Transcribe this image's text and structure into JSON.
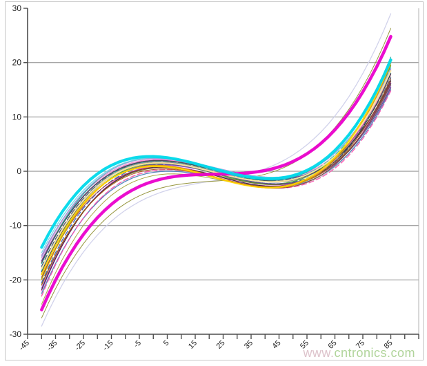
{
  "watermark": {
    "www_part": "www.",
    "site_part": "cntronics.com"
  },
  "colors": {
    "background": "#ffffff",
    "frame_border": "#c6c6c6",
    "gridline": "#9a9a9a",
    "axis": "#4d4d4d",
    "tick_label": "#1f1f1f",
    "plot_right_border": "#b0b0b0",
    "watermark_green": "#a3cd89",
    "watermark_pink": "#d8b9c3",
    "thick_cyan": "#00d9ea",
    "thick_magenta": "#ea00cc"
  },
  "chart_data": {
    "type": "line",
    "title": "",
    "xlabel": "",
    "ylabel": "",
    "grid": "horizontal-only",
    "legend": "none",
    "x_axis": {
      "min": -45,
      "max": 95,
      "tick_step": 5,
      "label_step": 10,
      "tick_labels": [
        "-45",
        "-35",
        "-25",
        "-15",
        "-5",
        "5",
        "15",
        "25",
        "35",
        "45",
        "55",
        "65",
        "75",
        "85"
      ],
      "label_rotation_deg": -45
    },
    "y_axis": {
      "min": -30,
      "max": 30,
      "tick_step": 10,
      "tick_labels": [
        "30",
        "20",
        "10",
        "0",
        "-10",
        "-20",
        "-30"
      ],
      "gridline_values": [
        20,
        10,
        0,
        -10,
        -20
      ]
    },
    "curve_temp_range": [
      -40,
      85
    ],
    "anchor_temps": [
      -40,
      5,
      50,
      85
    ],
    "series_note": "Family of cubic frequency-deviation vs temperature curves; each series gives values (ppm) at anchor temps -40, 5, 50, 85 degC; the unique cubic through those points reproduces the drawn curve.",
    "series": [
      {
        "name": "pale-lavender",
        "color": "#cfd0ea",
        "width": 1.3,
        "dash": false,
        "values": [
          -28.5,
          -3.5,
          3.0,
          29.0
        ]
      },
      {
        "name": "olive-low",
        "color": "#8f8f33",
        "width": 1.0,
        "dash": false,
        "values": [
          -27.0,
          -2.8,
          1.5,
          26.3
        ]
      },
      {
        "name": "light-gray",
        "color": "#c4c4c4",
        "width": 1.0,
        "dash": false,
        "values": [
          -22.8,
          0.2,
          -2.8,
          15.2
        ]
      },
      {
        "name": "steel-blue-low",
        "color": "#4f81bd",
        "width": 1.3,
        "dash": false,
        "values": [
          -22.5,
          0.0,
          -2.6,
          15.0
        ]
      },
      {
        "name": "olive-mid",
        "color": "#a3a33c",
        "width": 1.0,
        "dash": false,
        "values": [
          -24.5,
          -0.5,
          -2.5,
          16.0
        ]
      },
      {
        "name": "navy",
        "color": "#1f3864",
        "width": 1.3,
        "dash": false,
        "values": [
          -18.5,
          1.6,
          -1.6,
          18.0
        ]
      },
      {
        "name": "navy-dashed",
        "color": "#2a4a80",
        "width": 1.3,
        "dash": true,
        "values": [
          -17.5,
          1.9,
          -1.3,
          17.2
        ]
      },
      {
        "name": "blue-dashed",
        "color": "#3a5fc0",
        "width": 1.3,
        "dash": true,
        "values": [
          -20.5,
          1.2,
          -2.0,
          16.8
        ]
      },
      {
        "name": "purple",
        "color": "#7030a0",
        "width": 1.5,
        "dash": false,
        "values": [
          -16.5,
          2.0,
          -1.2,
          16.2
        ]
      },
      {
        "name": "violet",
        "color": "#9b59d0",
        "width": 1.3,
        "dash": false,
        "values": [
          -21.5,
          1.1,
          -2.2,
          15.8
        ]
      },
      {
        "name": "plum",
        "color": "#b070d0",
        "width": 1.3,
        "dash": false,
        "values": [
          -15.5,
          2.2,
          -0.9,
          15.5
        ]
      },
      {
        "name": "magenta-thin",
        "color": "#e040c0",
        "width": 1.3,
        "dash": false,
        "values": [
          -22.0,
          0.9,
          -2.3,
          18.8
        ]
      },
      {
        "name": "pink-dashed",
        "color": "#ff50b0",
        "width": 1.3,
        "dash": true,
        "values": [
          -23.0,
          0.3,
          -2.9,
          14.8
        ]
      },
      {
        "name": "light-pink",
        "color": "#ff9ad5",
        "width": 1.3,
        "dash": false,
        "values": [
          -16.0,
          2.1,
          -1.0,
          17.8
        ]
      },
      {
        "name": "teal",
        "color": "#1fae9e",
        "width": 1.3,
        "dash": false,
        "values": [
          -17.0,
          2.3,
          -1.1,
          21.0
        ]
      },
      {
        "name": "teal-dashed",
        "color": "#2cc0ae",
        "width": 1.3,
        "dash": true,
        "values": [
          -18.2,
          1.8,
          -1.4,
          19.3
        ]
      },
      {
        "name": "light-cyan",
        "color": "#6fd8e8",
        "width": 1.3,
        "dash": false,
        "values": [
          -15.0,
          2.4,
          -0.7,
          18.3
        ]
      },
      {
        "name": "green",
        "color": "#4ea72e",
        "width": 1.3,
        "dash": false,
        "values": [
          -19.8,
          1.4,
          -1.9,
          19.5
        ]
      },
      {
        "name": "dark-olive",
        "color": "#6b6b2a",
        "width": 1.0,
        "dash": false,
        "values": [
          -20.8,
          0.7,
          -2.2,
          16.0
        ]
      },
      {
        "name": "gray",
        "color": "#8f8f8f",
        "width": 1.0,
        "dash": false,
        "values": [
          -17.8,
          1.7,
          -1.7,
          17.4
        ]
      },
      {
        "name": "dark-gray",
        "color": "#4d4d4d",
        "width": 1.3,
        "dash": false,
        "values": [
          -16.8,
          1.9,
          -1.5,
          16.6
        ]
      },
      {
        "name": "black-thin",
        "color": "#2e2e2e",
        "width": 1.0,
        "dash": false,
        "values": [
          -21.8,
          0.8,
          -2.4,
          17.9
        ]
      },
      {
        "name": "periwinkle",
        "color": "#8faadc",
        "width": 1.3,
        "dash": false,
        "values": [
          -15.8,
          2.3,
          -0.8,
          18.9
        ]
      },
      {
        "name": "slate-purple",
        "color": "#5f4a8b",
        "width": 1.3,
        "dash": false,
        "values": [
          -18.8,
          1.3,
          -2.1,
          15.4
        ]
      },
      {
        "name": "maroon",
        "color": "#943634",
        "width": 1.0,
        "dash": false,
        "values": [
          -19.5,
          0.6,
          -2.8,
          16.5
        ]
      },
      {
        "name": "rust",
        "color": "#b05010",
        "width": 1.0,
        "dash": false,
        "values": [
          -21.0,
          0.4,
          -2.5,
          17.0
        ]
      },
      {
        "name": "amber",
        "color": "#e8a000",
        "width": 1.3,
        "dash": false,
        "values": [
          -20.0,
          1.0,
          -2.6,
          19.8
        ]
      },
      {
        "name": "pale-yellow",
        "color": "#ffe9a0",
        "width": 2.0,
        "dash": false,
        "values": [
          -18.0,
          1.5,
          -1.5,
          18.5
        ]
      },
      {
        "name": "yellow",
        "color": "#ffd400",
        "width": 2.2,
        "dash": false,
        "values": [
          -19.0,
          0.8,
          -2.4,
          20.3
        ]
      },
      {
        "name": "thick-magenta",
        "color": "#ea00cc",
        "width": 4.5,
        "dash": false,
        "values": [
          -25.5,
          -1.2,
          1.8,
          24.8
        ]
      },
      {
        "name": "thick-cyan",
        "color": "#00d9ea",
        "width": 4.2,
        "dash": false,
        "values": [
          -14.0,
          2.5,
          -0.8,
          20.5
        ]
      }
    ]
  }
}
